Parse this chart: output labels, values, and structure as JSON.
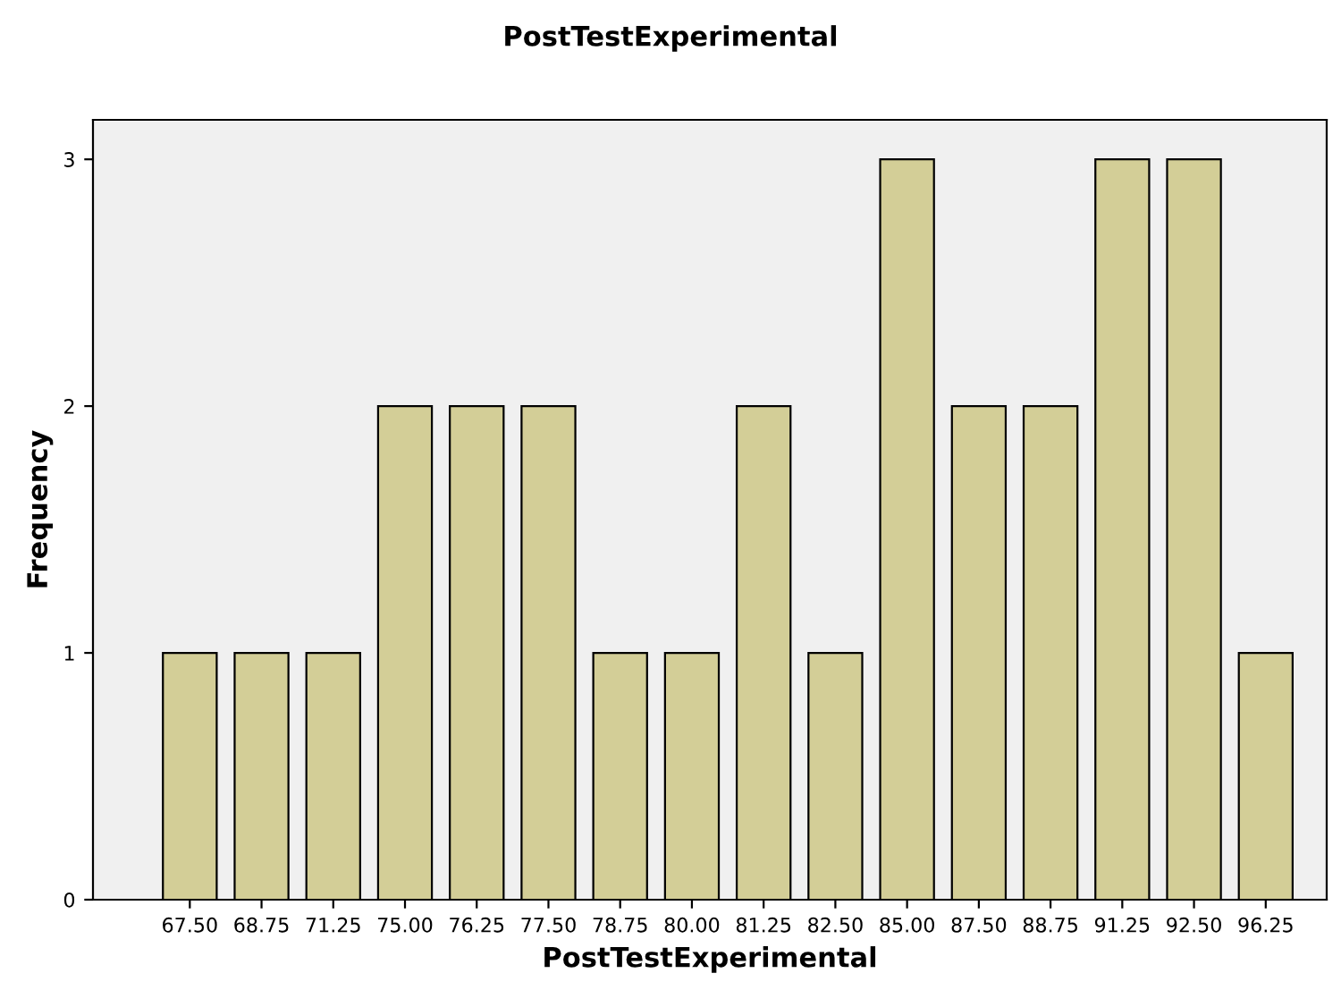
{
  "chart_data": {
    "type": "bar",
    "title": "PostTestExperimental",
    "xlabel": "PostTestExperimental",
    "ylabel": "Frequency",
    "categories": [
      "67.50",
      "68.75",
      "71.25",
      "75.00",
      "76.25",
      "77.50",
      "78.75",
      "80.00",
      "81.25",
      "82.50",
      "85.00",
      "87.50",
      "88.75",
      "91.25",
      "92.50",
      "96.25"
    ],
    "values": [
      1,
      1,
      1,
      2,
      2,
      2,
      1,
      1,
      2,
      1,
      3,
      2,
      2,
      3,
      3,
      1
    ],
    "color": "#d3ce97",
    "ylim": [
      0,
      3.16
    ],
    "yticks": [
      0,
      1,
      2,
      3
    ],
    "grid": false,
    "legend": false
  }
}
